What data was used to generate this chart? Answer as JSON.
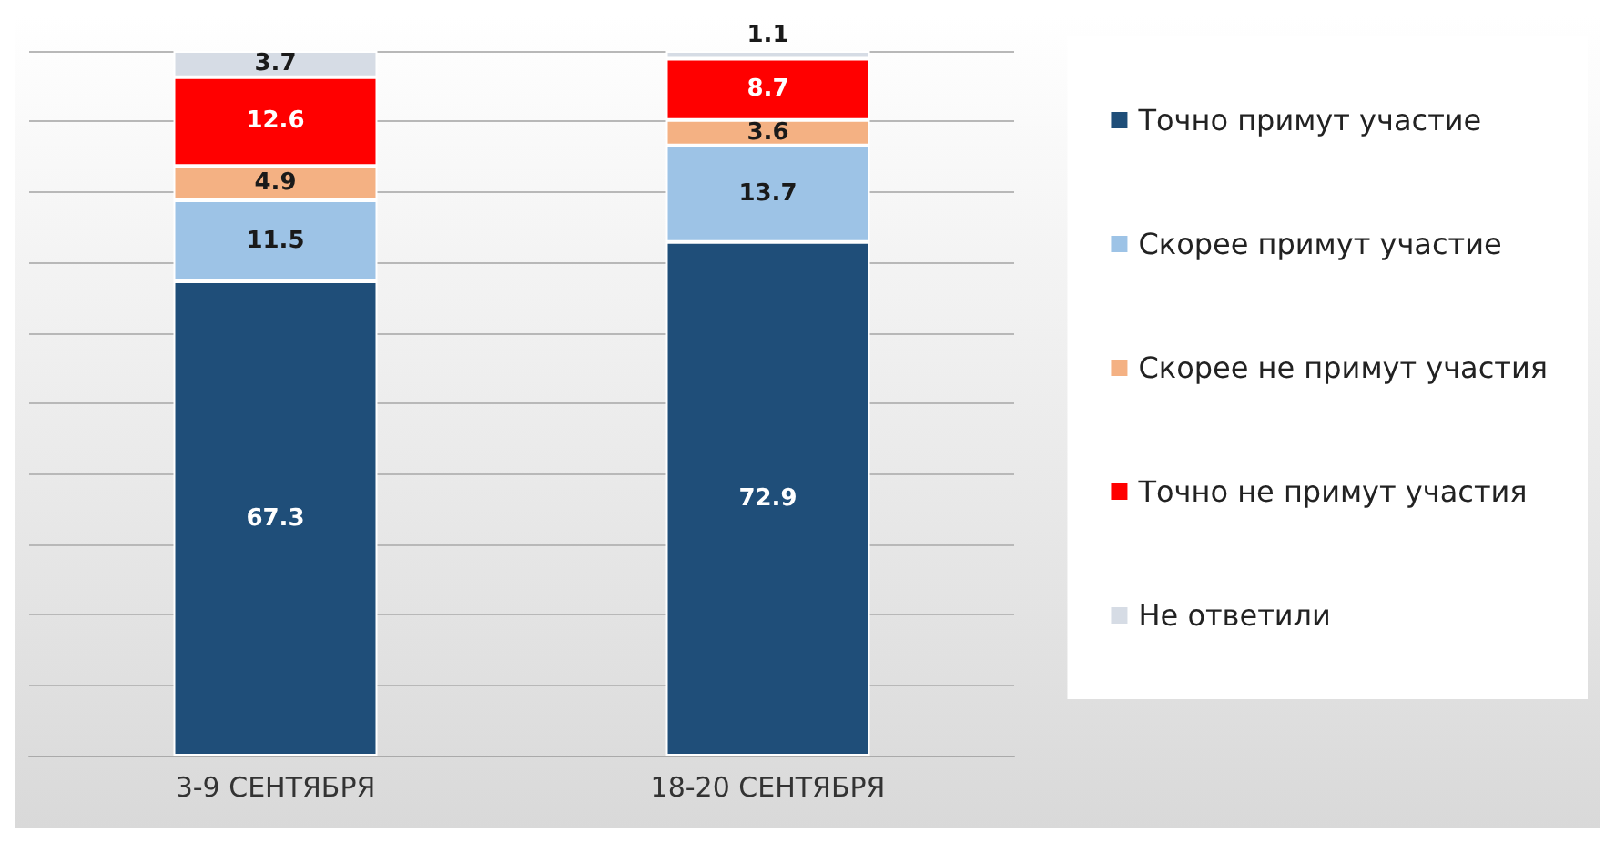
{
  "chart_data": {
    "type": "bar",
    "stacked": true,
    "categories": [
      "3-9 СЕНТЯБРЯ",
      "18-20 СЕНТЯБРЯ"
    ],
    "series": [
      {
        "name": "Точно примут участие",
        "color": "#1f4e79",
        "values": [
          67.3,
          72.9
        ]
      },
      {
        "name": "Скорее примут участие",
        "color": "#9dc3e6",
        "values": [
          11.5,
          13.7
        ]
      },
      {
        "name": "Скорее не примут участия",
        "color": "#f4b183",
        "values": [
          4.9,
          3.6
        ]
      },
      {
        "name": "Точно не примут участия",
        "color": "#ff0000",
        "values": [
          12.6,
          8.7
        ]
      },
      {
        "name": "Не ответили",
        "color": "#d6dce5",
        "values": [
          3.7,
          1.1
        ]
      }
    ],
    "ylim": [
      0,
      100
    ],
    "yticks": [
      {
        "value": 0,
        "label": null
      },
      {
        "value": 10,
        "label": null
      },
      {
        "value": 20,
        "label": null
      },
      {
        "value": 30,
        "label": null
      },
      {
        "value": 40,
        "label": null
      },
      {
        "value": 50,
        "label": null
      },
      {
        "value": 60,
        "label": null
      },
      {
        "value": 70,
        "label": null
      },
      {
        "value": 80,
        "label": null
      },
      {
        "value": 90,
        "label": null
      },
      {
        "value": 100,
        "label": null
      }
    ],
    "tick_labels": "x",
    "grid": "y",
    "legend": "right",
    "data_labels": true
  }
}
